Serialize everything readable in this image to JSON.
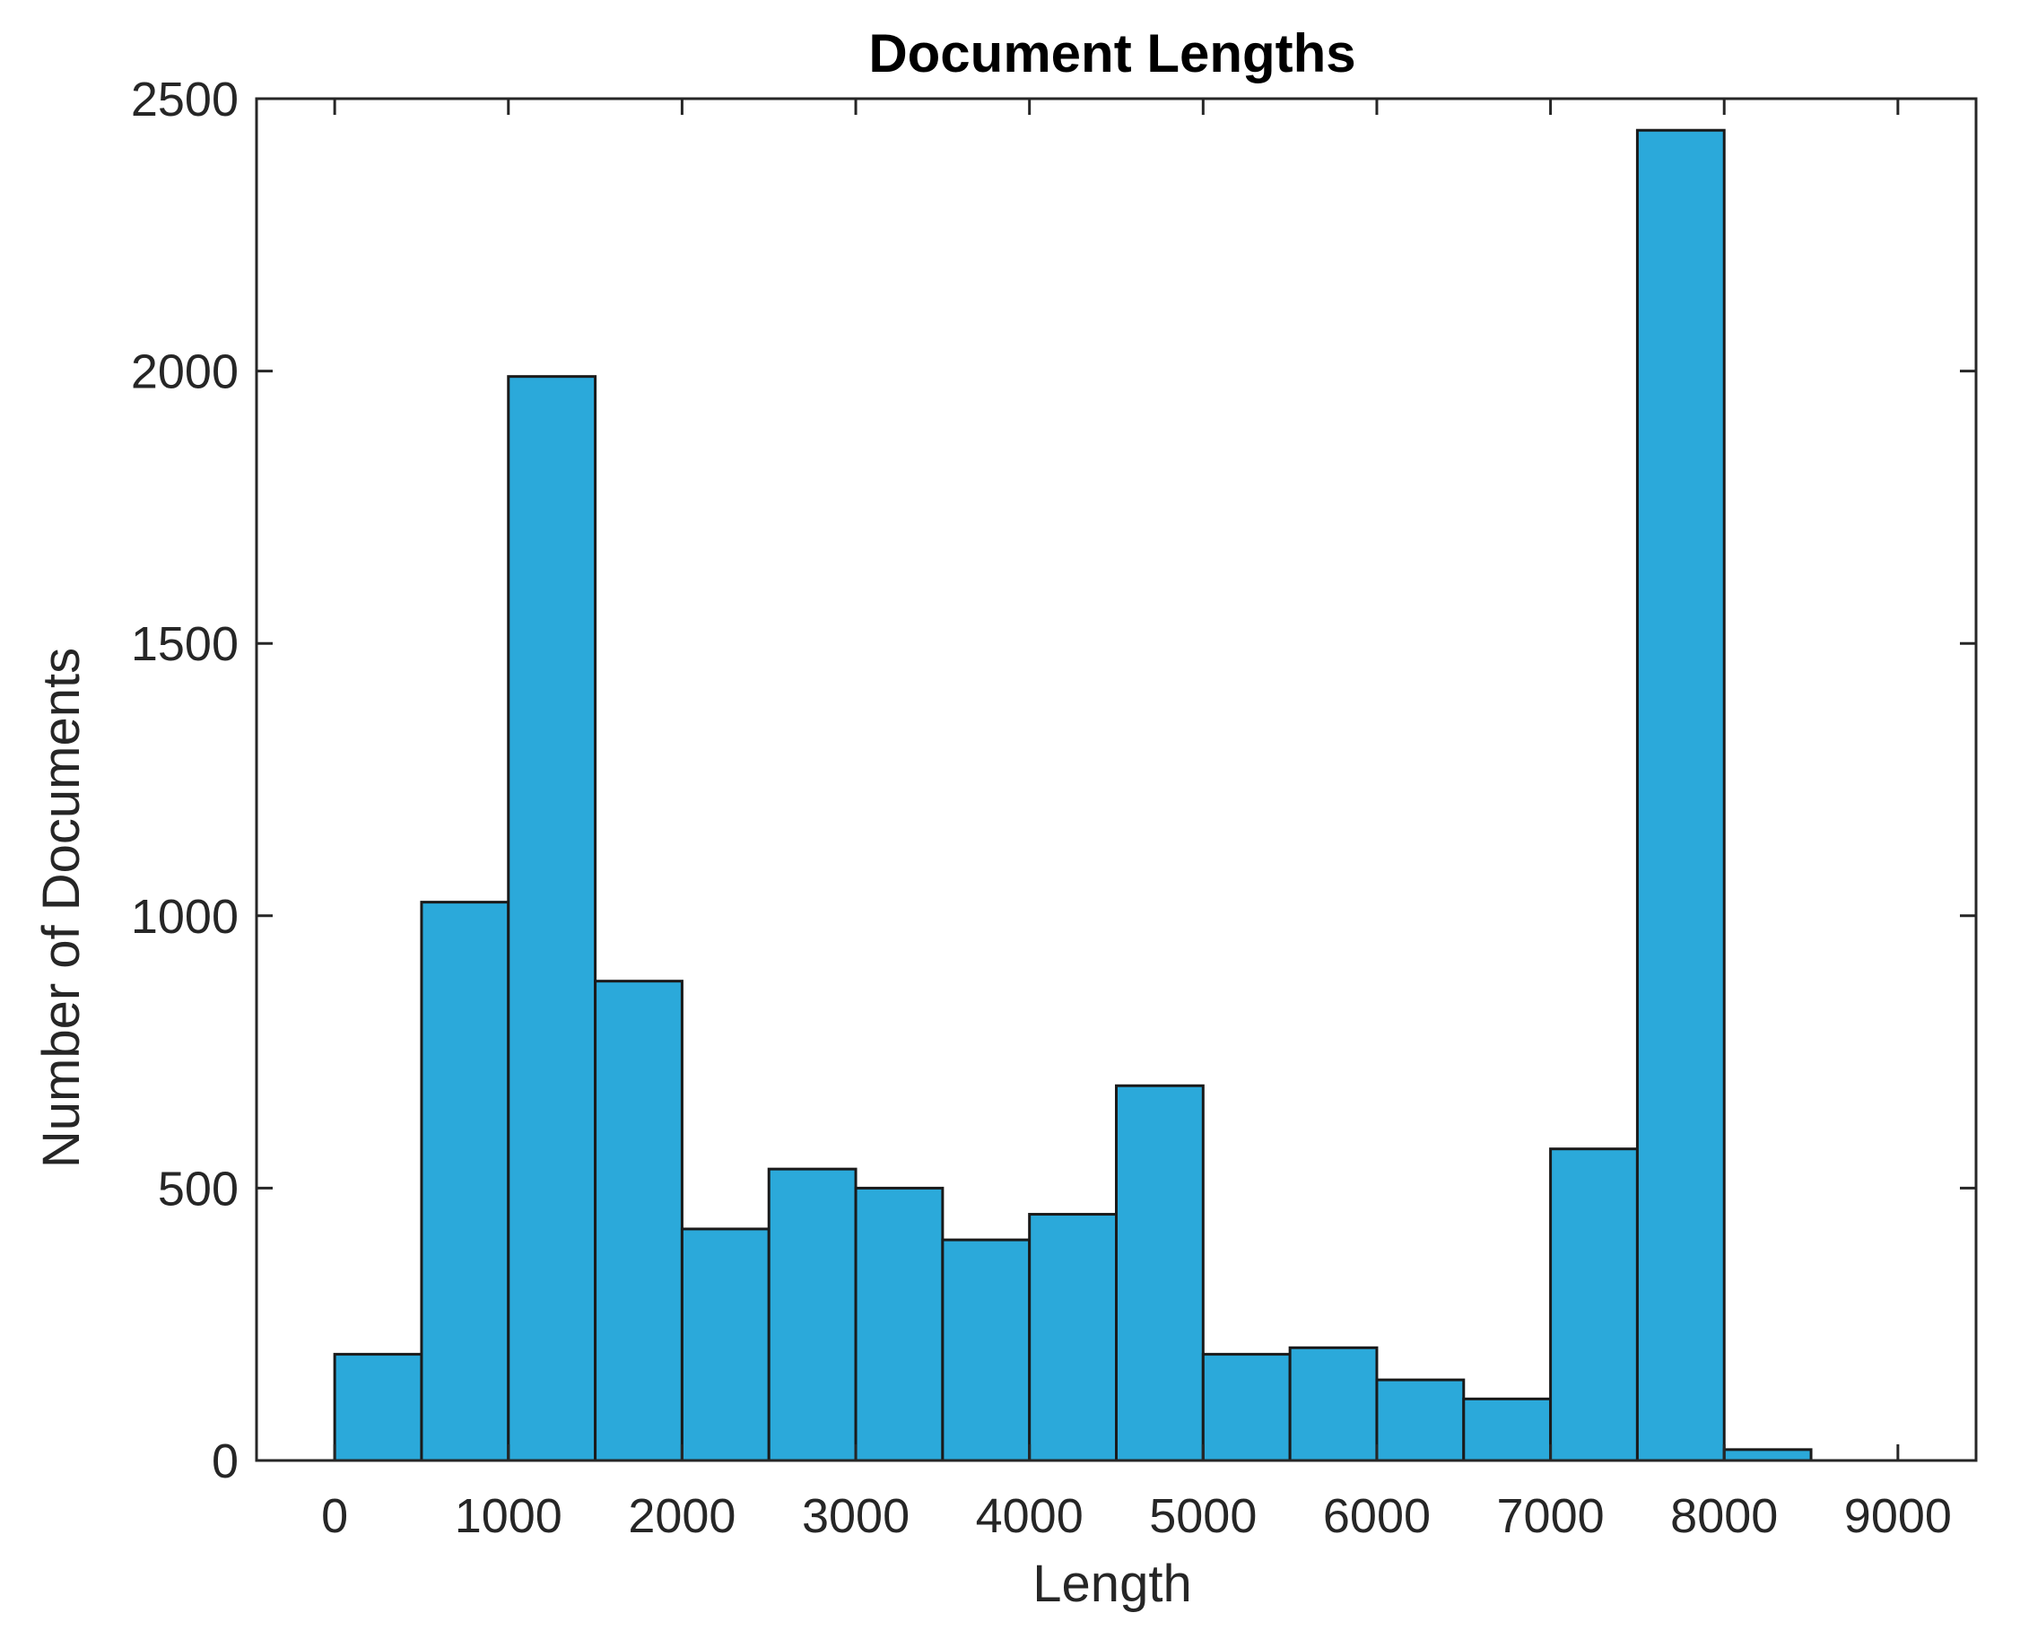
{
  "chart_data": {
    "type": "bar",
    "title": "Document Lengths",
    "xlabel": "Length",
    "ylabel": "Number of Documents",
    "xlim": [
      -450,
      9450
    ],
    "ylim": [
      0,
      2500
    ],
    "xticks": [
      0,
      1000,
      2000,
      3000,
      4000,
      5000,
      6000,
      7000,
      8000,
      9000
    ],
    "yticks": [
      0,
      500,
      1000,
      1500,
      2000,
      2500
    ],
    "bin_width": 500,
    "bin_edges": [
      0,
      500,
      1000,
      1500,
      2000,
      2500,
      3000,
      3500,
      4000,
      4500,
      5000,
      5500,
      6000,
      6500,
      7000,
      7500,
      8000,
      8500
    ],
    "values": [
      195,
      1025,
      1990,
      880,
      425,
      535,
      500,
      405,
      452,
      688,
      195,
      207,
      148,
      113,
      572,
      2442,
      20
    ],
    "grid": false,
    "bar_color": "#2ba9da",
    "edge_color": "#1a1a1a"
  }
}
